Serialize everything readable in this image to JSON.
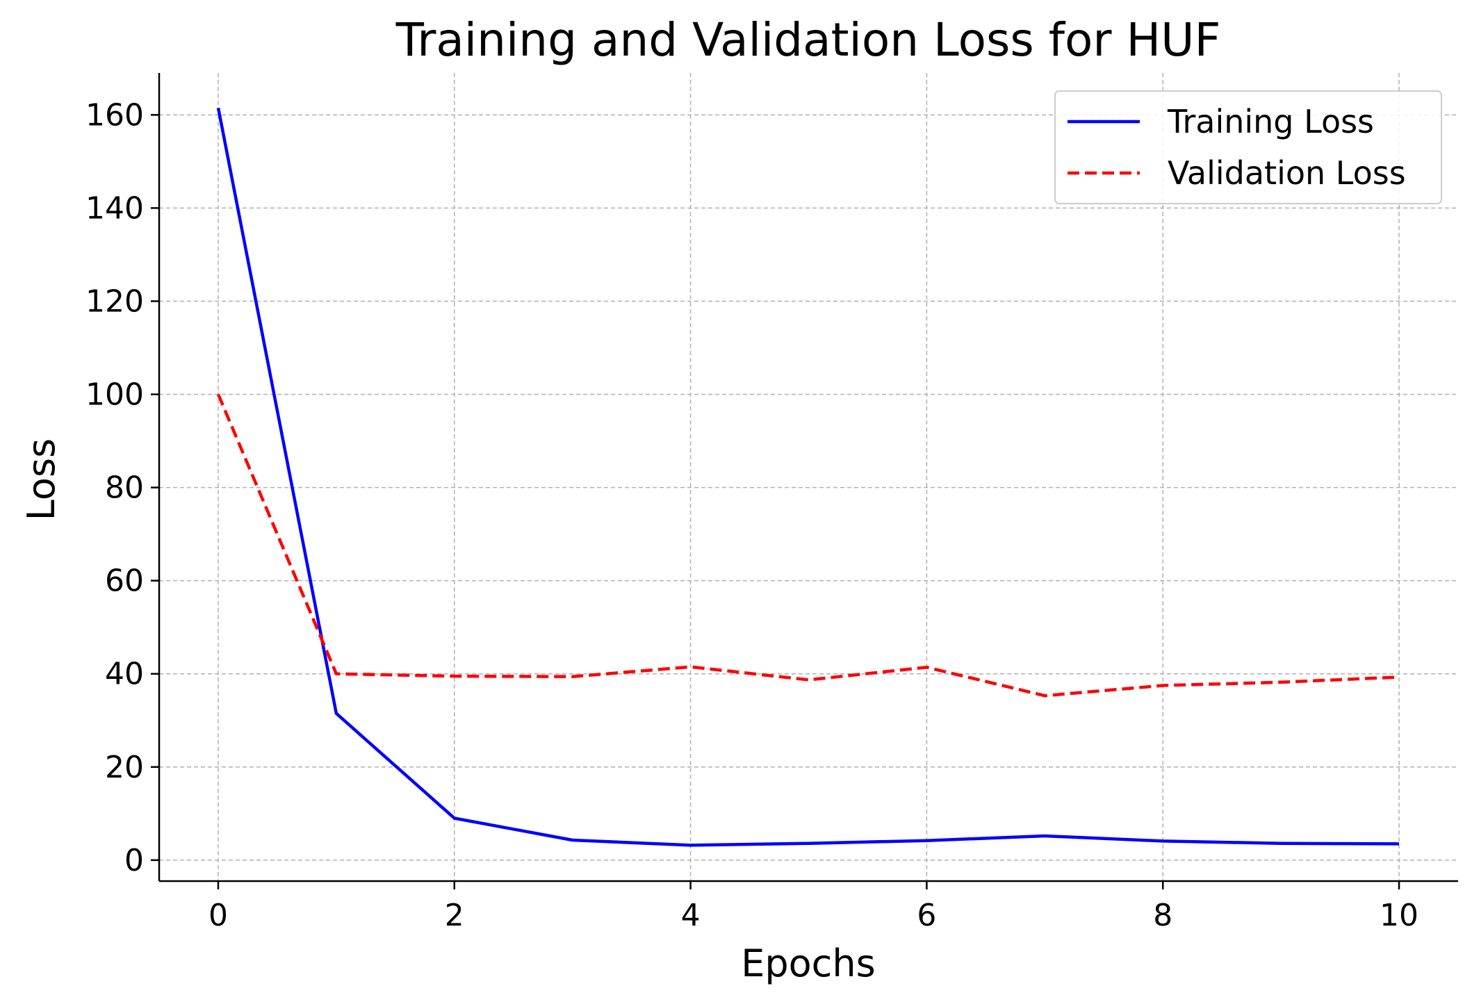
{
  "chart_data": {
    "type": "line",
    "title": "Training and Validation Loss for HUF",
    "xlabel": "Epochs",
    "ylabel": "Loss",
    "xlim": [
      -0.5,
      10.5
    ],
    "ylim": [
      -4.5,
      169
    ],
    "xticks": [
      0,
      2,
      4,
      6,
      8,
      10
    ],
    "yticks": [
      0,
      20,
      40,
      60,
      80,
      100,
      120,
      140,
      160
    ],
    "grid": true,
    "legend_position": "top-right",
    "x": [
      0,
      1,
      2,
      3,
      4,
      5,
      6,
      7,
      8,
      9,
      10
    ],
    "series": [
      {
        "name": "Training Loss",
        "color": "#0000ff",
        "style": "solid",
        "values": [
          161.5,
          31.5,
          9.0,
          4.3,
          3.2,
          3.6,
          4.2,
          5.2,
          4.1,
          3.6,
          3.5
        ]
      },
      {
        "name": "Validation Loss",
        "color": "#ff0000",
        "style": "dashed",
        "values": [
          100.0,
          40.0,
          39.5,
          39.4,
          41.5,
          38.7,
          41.4,
          35.3,
          37.5,
          38.2,
          39.3
        ]
      }
    ]
  }
}
